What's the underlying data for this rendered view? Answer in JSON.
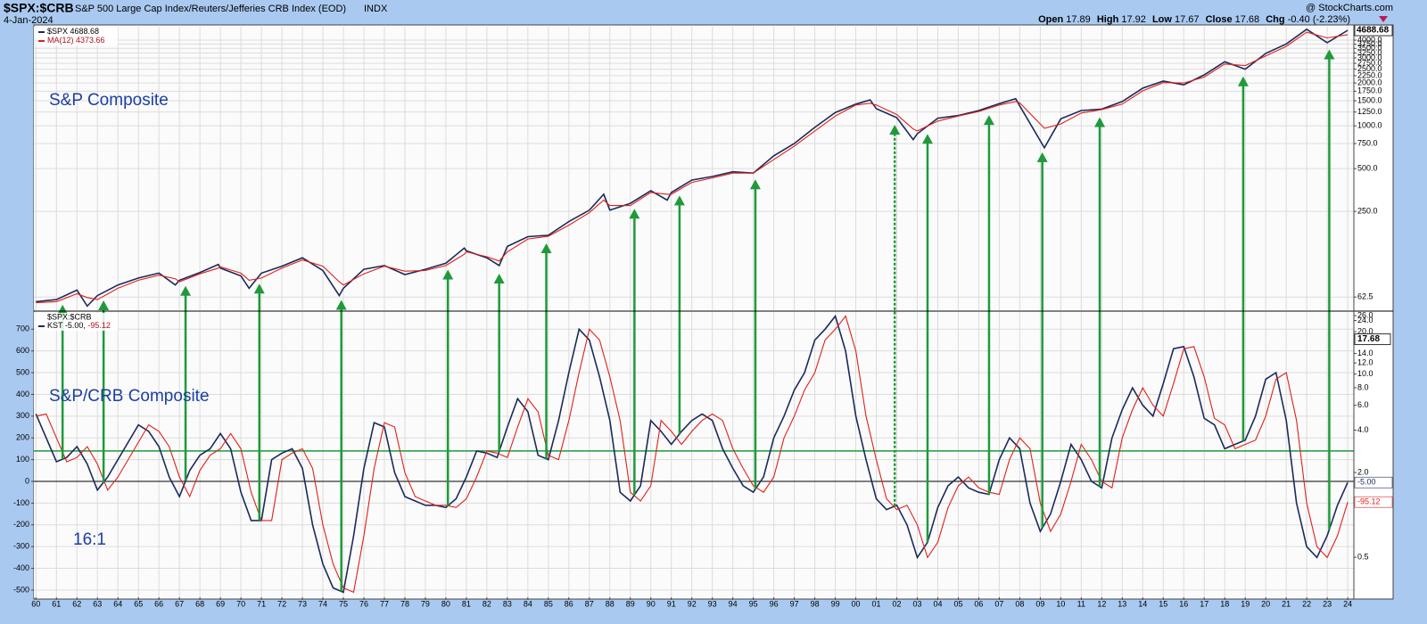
{
  "header": {
    "symbol": "$SPX:$CRB",
    "description": "S&P 500 Large Cap Index/Reuters/Jefferies CRB Index (EOD)",
    "exchange": "INDX",
    "date": "4-Jan-2024",
    "source": "@ StockCharts.com",
    "quote": [
      {
        "label": "Open",
        "value": "17.89"
      },
      {
        "label": "High",
        "value": "17.92"
      },
      {
        "label": "Low",
        "value": "17.67"
      },
      {
        "label": "Close",
        "value": "17.68"
      },
      {
        "label": "Chg",
        "value": "-0.40 (-2.23%)"
      }
    ]
  },
  "chart_data": [
    {
      "type": "line",
      "log": true,
      "grid": true,
      "annotation": "S&P Composite",
      "xlim": [
        1959.9,
        2024.3
      ],
      "ylim": [
        50.5,
        4970
      ],
      "yticks": [
        {
          "value": 4000,
          "label": "4000.0"
        },
        {
          "value": 3750,
          "label": "3750.0"
        },
        {
          "value": 3500,
          "label": "3500.0"
        },
        {
          "value": 3250,
          "label": "3250.0"
        },
        {
          "value": 3000,
          "label": "3000.0"
        },
        {
          "value": 2750,
          "label": "2750.0"
        },
        {
          "value": 2500,
          "label": "2500.0"
        },
        {
          "value": 2250,
          "label": "2250.0"
        },
        {
          "value": 2000,
          "label": "2000.0"
        },
        {
          "value": 1750,
          "label": "1750.0"
        },
        {
          "value": 1500,
          "label": "1500.0"
        },
        {
          "value": 1250,
          "label": "1250.0"
        },
        {
          "value": 1000,
          "label": "1000.0"
        },
        {
          "value": 750,
          "label": "750.0"
        },
        {
          "value": 500,
          "label": "500.0"
        },
        {
          "value": 250,
          "label": "250.0"
        },
        62.5
      ],
      "x": [
        1960,
        1961,
        1962,
        1962.5,
        1963,
        1964,
        1965,
        1966,
        1966.8,
        1967,
        1968,
        1968.9,
        1969,
        1970,
        1970.4,
        1971,
        1972,
        1973,
        1974,
        1974.8,
        1975,
        1976,
        1977,
        1978,
        1979,
        1980,
        1980.9,
        1981,
        1982,
        1982.6,
        1983,
        1984,
        1985,
        1986,
        1987,
        1987.7,
        1988,
        1989,
        1990,
        1990.8,
        1991,
        1992,
        1993,
        1994,
        1995,
        1996,
        1997,
        1998,
        1999,
        2000,
        2000.7,
        2001,
        2002,
        2002.8,
        2003,
        2004,
        2005,
        2006,
        2007,
        2007.8,
        2008,
        2009.2,
        2010,
        2011,
        2012,
        2013,
        2014,
        2015,
        2016,
        2017,
        2018,
        2019,
        2020,
        2021,
        2022,
        2023,
        2024
      ],
      "series": [
        {
          "name": "$SPX",
          "color": "#1b2a5c",
          "values": [
            58,
            60,
            70,
            54,
            64,
            76,
            85,
            92,
            76,
            82,
            93,
            106,
            100,
            88,
            72,
            92,
            103,
            118,
            96,
            64,
            72,
            98,
            104,
            90,
            98,
            108,
            138,
            132,
            118,
            104,
            142,
            166,
            170,
            212,
            255,
            330,
            255,
            285,
            350,
            300,
            340,
            415,
            440,
            475,
            465,
            615,
            750,
            975,
            1240,
            1420,
            1520,
            1320,
            1140,
            800,
            880,
            1130,
            1180,
            1280,
            1430,
            1550,
            1380,
            700,
            1120,
            1280,
            1310,
            1480,
            1840,
            2060,
            1940,
            2280,
            2820,
            2500,
            3230,
            3760,
            4770,
            3840,
            4688.68
          ]
        },
        {
          "name": "MA(12)",
          "color": "#e0201b",
          "values": [
            57,
            58,
            66,
            62,
            60,
            72,
            82,
            89,
            84,
            80,
            91,
            100,
            102,
            92,
            82,
            85,
            100,
            114,
            103,
            80,
            76,
            91,
            103,
            95,
            96,
            104,
            125,
            130,
            120,
            112,
            130,
            160,
            167,
            200,
            245,
            300,
            275,
            275,
            340,
            330,
            330,
            400,
            430,
            465,
            465,
            580,
            720,
            920,
            1170,
            1400,
            1440,
            1400,
            1200,
            950,
            920,
            1080,
            1170,
            1260,
            1400,
            1480,
            1450,
            960,
            1030,
            1230,
            1300,
            1420,
            1760,
            2010,
            2000,
            2200,
            2720,
            2650,
            3100,
            3620,
            4550,
            4150,
            4373.66
          ]
        }
      ]
    },
    {
      "type": "line",
      "grid": true,
      "legend_title": "$SPX:$CRB",
      "annotations": [
        "S&P/CRB Composite",
        "16:1"
      ],
      "xlim": [
        1959.9,
        2024.3
      ],
      "ylim": [
        -533,
        779
      ],
      "yticks": [
        -500,
        -400,
        -300,
        -200,
        -100,
        0,
        100,
        200,
        300,
        400,
        500,
        600,
        700
      ],
      "y2log": true,
      "y2lim": [
        0.26,
        27.6
      ],
      "y2_last": 17.68,
      "y2ticks": [
        {
          "value": 26,
          "label": "26.0"
        },
        {
          "value": 24,
          "label": "24.0"
        },
        {
          "value": 20,
          "label": "20.0"
        },
        {
          "value": 14,
          "label": "14.0"
        },
        {
          "value": 12,
          "label": "12.0"
        },
        {
          "value": 10,
          "label": "10.0"
        },
        {
          "value": 8,
          "label": "8.0"
        },
        {
          "value": 6,
          "label": "6.0"
        },
        {
          "value": 4,
          "label": "4.0"
        },
        {
          "value": 2,
          "label": "2.0"
        },
        0.5
      ],
      "xticks": [
        {
          "value": 1960,
          "label": "60"
        },
        {
          "value": 1961,
          "label": "61"
        },
        {
          "value": 1962,
          "label": "62"
        },
        {
          "value": 1963,
          "label": "63"
        },
        {
          "value": 1964,
          "label": "64"
        },
        {
          "value": 1965,
          "label": "65"
        },
        {
          "value": 1966,
          "label": "66"
        },
        {
          "value": 1967,
          "label": "67"
        },
        {
          "value": 1968,
          "label": "68"
        },
        {
          "value": 1969,
          "label": "69"
        },
        {
          "value": 1970,
          "label": "70"
        },
        {
          "value": 1971,
          "label": "71"
        },
        {
          "value": 1972,
          "label": "72"
        },
        {
          "value": 1973,
          "label": "73"
        },
        {
          "value": 1974,
          "label": "74"
        },
        {
          "value": 1975,
          "label": "75"
        },
        {
          "value": 1976,
          "label": "76"
        },
        {
          "value": 1977,
          "label": "77"
        },
        {
          "value": 1978,
          "label": "78"
        },
        {
          "value": 1979,
          "label": "79"
        },
        {
          "value": 1980,
          "label": "80"
        },
        {
          "value": 1981,
          "label": "81"
        },
        {
          "value": 1982,
          "label": "82"
        },
        {
          "value": 1983,
          "label": "83"
        },
        {
          "value": 1984,
          "label": "84"
        },
        {
          "value": 1985,
          "label": "85"
        },
        {
          "value": 1986,
          "label": "86"
        },
        {
          "value": 1987,
          "label": "87"
        },
        {
          "value": 1988,
          "label": "88"
        },
        {
          "value": 1989,
          "label": "89"
        },
        {
          "value": 1990,
          "label": "90"
        },
        {
          "value": 1991,
          "label": "91"
        },
        {
          "value": 1992,
          "label": "92"
        },
        {
          "value": 1993,
          "label": "93"
        },
        {
          "value": 1994,
          "label": "94"
        },
        {
          "value": 1995,
          "label": "95"
        },
        {
          "value": 1996,
          "label": "96"
        },
        {
          "value": 1997,
          "label": "97"
        },
        {
          "value": 1998,
          "label": "98"
        },
        {
          "value": 1999,
          "label": "99"
        },
        {
          "value": 2000,
          "label": "00"
        },
        {
          "value": 2001,
          "label": "01"
        },
        {
          "value": 2002,
          "label": "02"
        },
        {
          "value": 2003,
          "label": "03"
        },
        {
          "value": 2004,
          "label": "04"
        },
        {
          "value": 2005,
          "label": "05"
        },
        {
          "value": 2006,
          "label": "06"
        },
        {
          "value": 2007,
          "label": "07"
        },
        {
          "value": 2008,
          "label": "08"
        },
        {
          "value": 2009,
          "label": "09"
        },
        {
          "value": 2010,
          "label": "10"
        },
        {
          "value": 2011,
          "label": "11"
        },
        {
          "value": 2012,
          "label": "12"
        },
        {
          "value": 2013,
          "label": "13"
        },
        {
          "value": 2014,
          "label": "14"
        },
        {
          "value": 2015,
          "label": "15"
        },
        {
          "value": 2016,
          "label": "16"
        },
        {
          "value": 2017,
          "label": "17"
        },
        {
          "value": 2018,
          "label": "18"
        },
        {
          "value": 2019,
          "label": "19"
        },
        {
          "value": 2020,
          "label": "20"
        },
        {
          "value": 2021,
          "label": "21"
        },
        {
          "value": 2022,
          "label": "22"
        },
        {
          "value": 2023,
          "label": "23"
        },
        {
          "value": 2024,
          "label": "24"
        }
      ],
      "reference_line": {
        "value": 140,
        "color": "#1e9a3a"
      },
      "arrows": {
        "color": "#1e9a3a",
        "items": [
          {
            "x": 1961.3
          },
          {
            "x": 1963.3
          },
          {
            "x": 1967.3
          },
          {
            "x": 1970.9
          },
          {
            "x": 1974.9
          },
          {
            "x": 1980.1
          },
          {
            "x": 1982.6
          },
          {
            "x": 1984.9
          },
          {
            "x": 1989.2
          },
          {
            "x": 1991.4
          },
          {
            "x": 1995.1
          },
          {
            "x": 2001.9,
            "dashed": true
          },
          {
            "x": 2003.5
          },
          {
            "x": 2006.5
          },
          {
            "x": 2009.1
          },
          {
            "x": 2011.9
          },
          {
            "x": 2018.9
          },
          {
            "x": 2023.1
          }
        ]
      },
      "x": [
        1960,
        1960.5,
        1961,
        1961.5,
        1962,
        1962.5,
        1963,
        1963.5,
        1964,
        1964.5,
        1965,
        1965.5,
        1966,
        1966.5,
        1967,
        1967.5,
        1968,
        1968.5,
        1969,
        1969.5,
        1970,
        1970.5,
        1971,
        1971.5,
        1972,
        1972.5,
        1973,
        1973.5,
        1974,
        1974.5,
        1975,
        1975.5,
        1976,
        1976.5,
        1977,
        1977.5,
        1978,
        1978.5,
        1979,
        1979.5,
        1980,
        1980.5,
        1981,
        1981.5,
        1982,
        1982.5,
        1983,
        1983.5,
        1984,
        1984.5,
        1985,
        1985.5,
        1986,
        1986.5,
        1987,
        1987.5,
        1988,
        1988.5,
        1989,
        1989.5,
        1990,
        1990.5,
        1991,
        1991.5,
        1992,
        1992.5,
        1993,
        1993.5,
        1994,
        1994.5,
        1995,
        1995.5,
        1996,
        1996.5,
        1997,
        1997.5,
        1998,
        1998.5,
        1999,
        1999.5,
        2000,
        2000.5,
        2001,
        2001.5,
        2002,
        2002.5,
        2003,
        2003.5,
        2004,
        2004.5,
        2005,
        2005.5,
        2006,
        2006.5,
        2007,
        2007.5,
        2008,
        2008.5,
        2009,
        2009.5,
        2010,
        2010.5,
        2011,
        2011.5,
        2012,
        2012.5,
        2013,
        2013.5,
        2014,
        2014.5,
        2015,
        2015.5,
        2016,
        2016.5,
        2017,
        2017.5,
        2018,
        2018.5,
        2019,
        2019.5,
        2020,
        2020.5,
        2021,
        2021.5,
        2022,
        2022.5,
        2023,
        2023.5,
        2024
      ],
      "series": [
        {
          "name": "KST",
          "color": "#1b2a5c",
          "last_label": "-5.00",
          "values": [
            310,
            200,
            90,
            110,
            160,
            80,
            -40,
            20,
            100,
            180,
            260,
            230,
            160,
            20,
            -70,
            50,
            120,
            150,
            220,
            150,
            -50,
            -180,
            -180,
            100,
            130,
            150,
            60,
            -200,
            -380,
            -490,
            -510,
            -250,
            60,
            270,
            250,
            40,
            -70,
            -90,
            -110,
            -110,
            -120,
            -80,
            20,
            140,
            130,
            110,
            250,
            380,
            320,
            120,
            100,
            280,
            500,
            700,
            650,
            480,
            280,
            -50,
            -90,
            -20,
            280,
            230,
            170,
            230,
            280,
            310,
            280,
            150,
            60,
            -20,
            -50,
            20,
            200,
            300,
            420,
            500,
            650,
            700,
            760,
            600,
            300,
            100,
            -80,
            -130,
            -110,
            -200,
            -350,
            -280,
            -120,
            -20,
            20,
            -30,
            -50,
            -60,
            100,
            200,
            150,
            -100,
            -230,
            -150,
            0,
            170,
            100,
            0,
            -30,
            200,
            330,
            430,
            350,
            300,
            450,
            610,
            620,
            480,
            290,
            260,
            150,
            170,
            190,
            300,
            470,
            500,
            280,
            -100,
            -300,
            -350,
            -250,
            -110,
            -5.0
          ]
        },
        {
          "color": "#e0201b",
          "last_label": "-95.12",
          "values": [
            300,
            310,
            200,
            90,
            110,
            160,
            80,
            -40,
            20,
            100,
            180,
            260,
            230,
            160,
            20,
            -70,
            50,
            120,
            150,
            220,
            150,
            -50,
            -180,
            -180,
            100,
            130,
            150,
            60,
            -200,
            -380,
            -490,
            -510,
            -250,
            60,
            270,
            250,
            40,
            -70,
            -90,
            -110,
            -110,
            -120,
            -80,
            20,
            140,
            130,
            110,
            250,
            380,
            320,
            120,
            100,
            280,
            500,
            700,
            650,
            480,
            280,
            -50,
            -90,
            -20,
            280,
            230,
            170,
            230,
            280,
            310,
            280,
            150,
            60,
            -20,
            -50,
            20,
            200,
            300,
            420,
            500,
            650,
            700,
            760,
            600,
            300,
            100,
            -80,
            -130,
            -110,
            -200,
            -350,
            -280,
            -120,
            -20,
            20,
            -30,
            -50,
            -60,
            100,
            200,
            150,
            -100,
            -230,
            -150,
            0,
            170,
            100,
            0,
            -30,
            200,
            330,
            430,
            350,
            300,
            450,
            610,
            620,
            480,
            290,
            260,
            150,
            170,
            190,
            300,
            470,
            500,
            280,
            -100,
            -300,
            -350,
            -250,
            -95.12
          ]
        }
      ]
    }
  ]
}
